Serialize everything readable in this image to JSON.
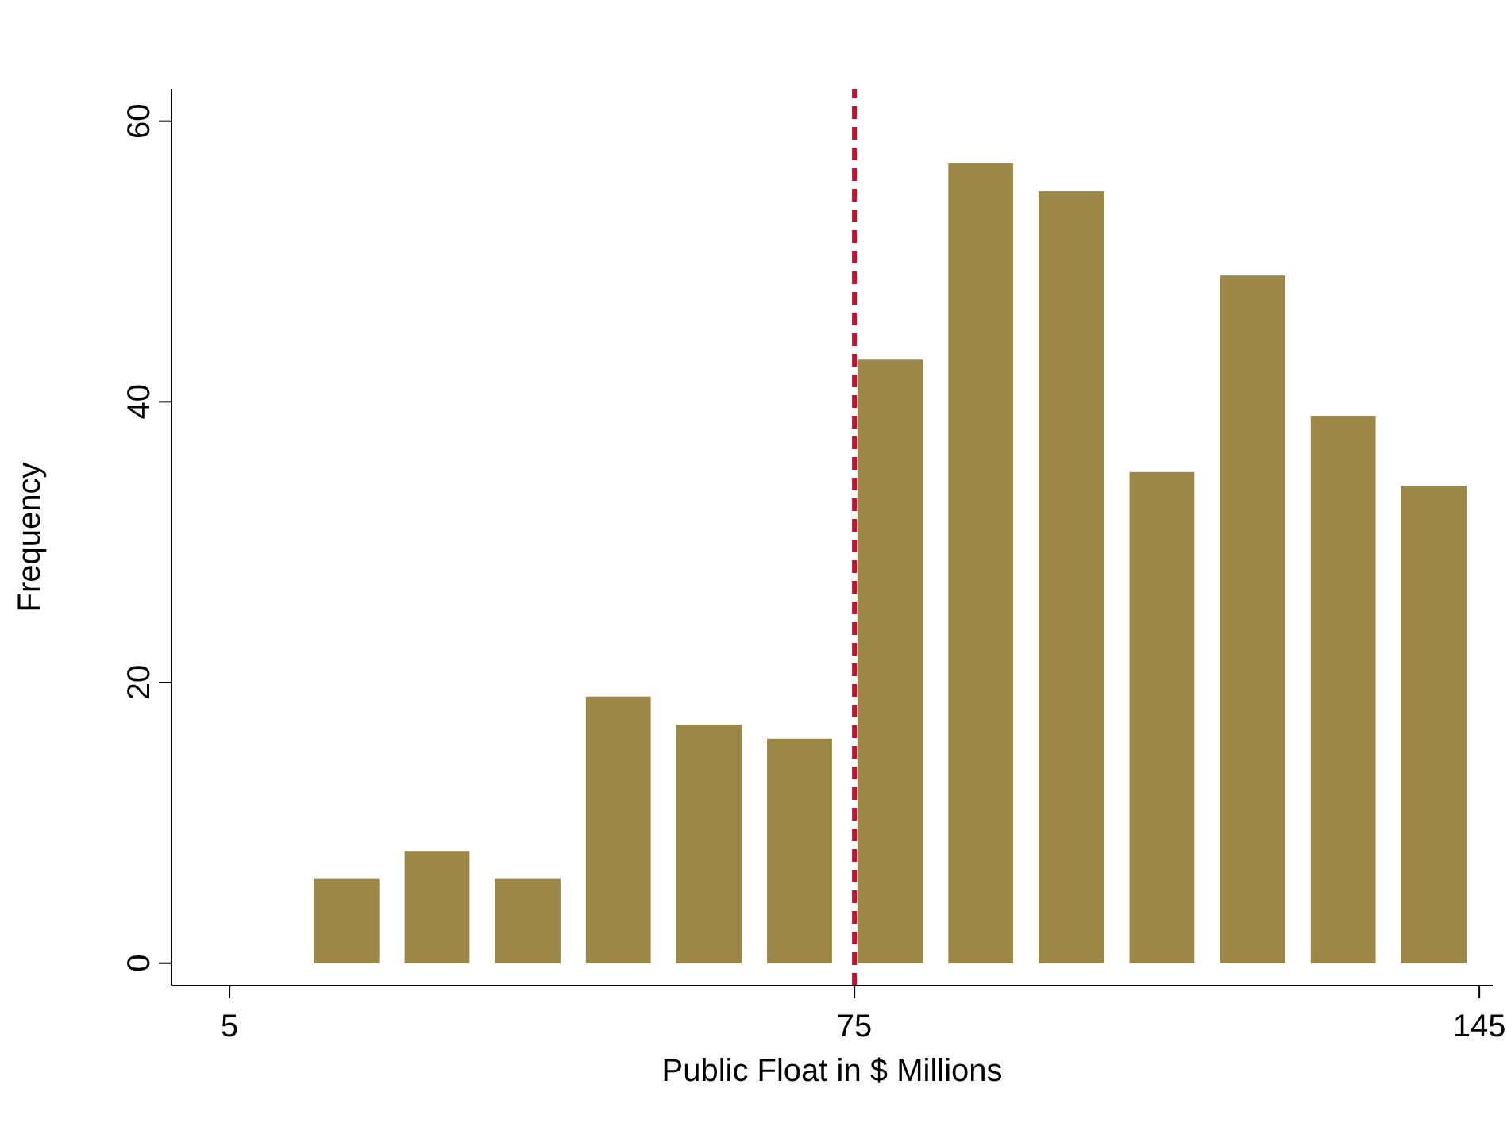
{
  "chart_data": {
    "type": "histogram",
    "xlabel": "Public Float in $ Millions",
    "ylabel": "Frequency",
    "bins": [
      13,
      23.2,
      33.3,
      43.5,
      53.6,
      63.8,
      73.9,
      84.1,
      94.2,
      104.4,
      114.5,
      124.7,
      134.8,
      145
    ],
    "values": [
      6,
      8,
      6,
      19,
      17,
      16,
      43,
      57,
      55,
      35,
      49,
      39,
      34
    ],
    "color": "#9c8747",
    "xlim": [
      -1.5,
      146.5
    ],
    "xticks": [
      5,
      75,
      145
    ],
    "ylim": [
      -1.6,
      62.3
    ],
    "yticks": [
      0,
      20,
      40,
      60
    ],
    "grid": false,
    "legend": false,
    "ref_lines": [
      {
        "axis": "x",
        "value": 75,
        "color": "#c8102e",
        "line_style": "dashed"
      }
    ]
  }
}
